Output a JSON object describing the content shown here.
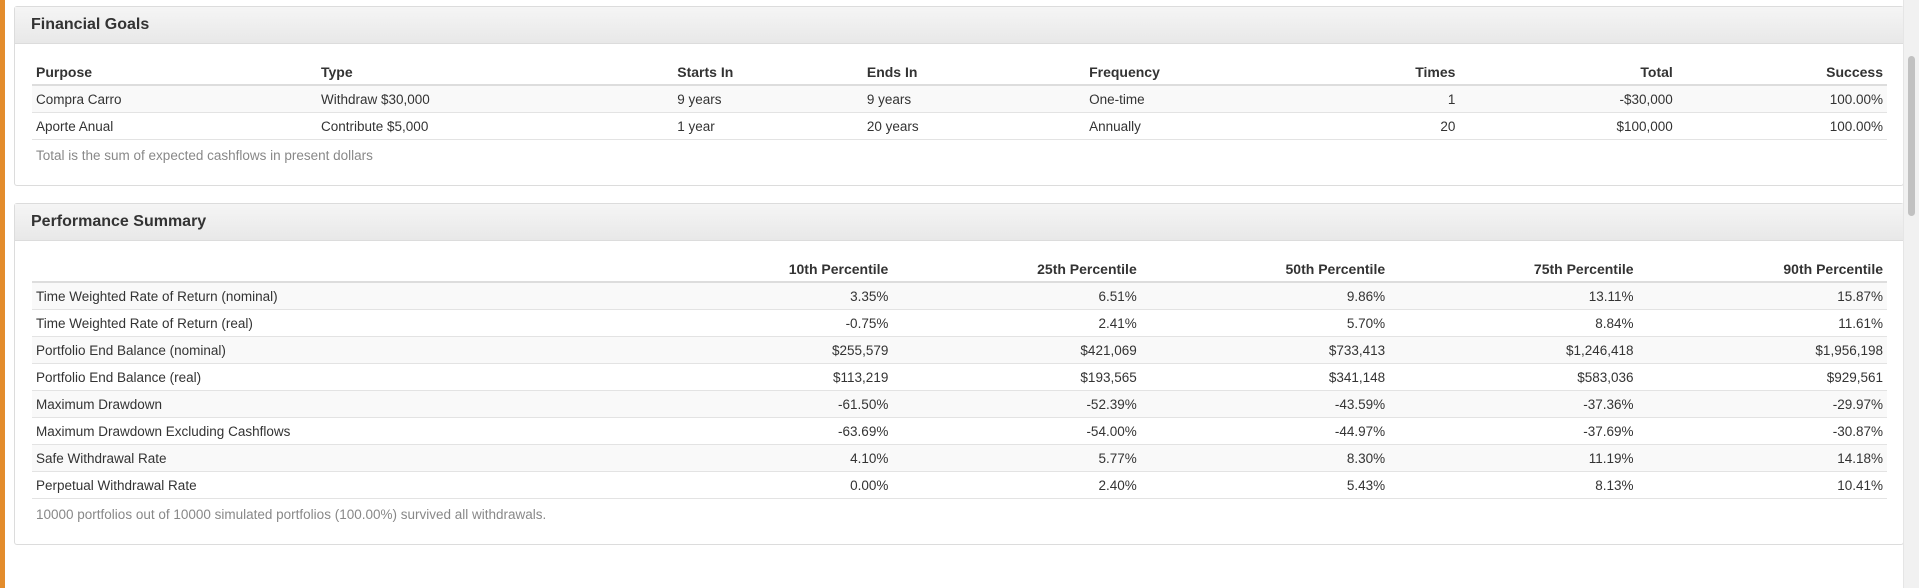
{
  "goals_panel": {
    "title": "Financial Goals",
    "columns": [
      "Purpose",
      "Type",
      "Starts In",
      "Ends In",
      "Frequency",
      "Times",
      "Total",
      "Success"
    ],
    "rows": [
      [
        "Compra Carro",
        "Withdraw $30,000",
        "9 years",
        "9 years",
        "One-time",
        "1",
        "-$30,000",
        "100.00%"
      ],
      [
        "Aporte Anual",
        "Contribute $5,000",
        "1 year",
        "20 years",
        "Annually",
        "20",
        "$100,000",
        "100.00%"
      ]
    ],
    "note": "Total is the sum of expected cashflows in present dollars"
  },
  "performance_panel": {
    "title": "Performance Summary",
    "columns": [
      "",
      "10th Percentile",
      "25th Percentile",
      "50th Percentile",
      "75th Percentile",
      "90th Percentile"
    ],
    "rows": [
      [
        "Time Weighted Rate of Return (nominal)",
        "3.35%",
        "6.51%",
        "9.86%",
        "13.11%",
        "15.87%"
      ],
      [
        "Time Weighted Rate of Return (real)",
        "-0.75%",
        "2.41%",
        "5.70%",
        "8.84%",
        "11.61%"
      ],
      [
        "Portfolio End Balance (nominal)",
        "$255,579",
        "$421,069",
        "$733,413",
        "$1,246,418",
        "$1,956,198"
      ],
      [
        "Portfolio End Balance (real)",
        "$113,219",
        "$193,565",
        "$341,148",
        "$583,036",
        "$929,561"
      ],
      [
        "Maximum Drawdown",
        "-61.50%",
        "-52.39%",
        "-43.59%",
        "-37.36%",
        "-29.97%"
      ],
      [
        "Maximum Drawdown Excluding Cashflows",
        "-63.69%",
        "-54.00%",
        "-44.97%",
        "-37.69%",
        "-30.87%"
      ],
      [
        "Safe Withdrawal Rate",
        "4.10%",
        "5.77%",
        "8.30%",
        "11.19%",
        "14.18%"
      ],
      [
        "Perpetual Withdrawal Rate",
        "0.00%",
        "2.40%",
        "5.43%",
        "8.13%",
        "10.41%"
      ]
    ],
    "note": "10000 portfolios out of 10000 simulated portfolios (100.00%) survived all withdrawals."
  },
  "colors": {
    "accent": "#e38c2c",
    "heading_bg": "#e8e8e8",
    "note_text": "#888888"
  }
}
